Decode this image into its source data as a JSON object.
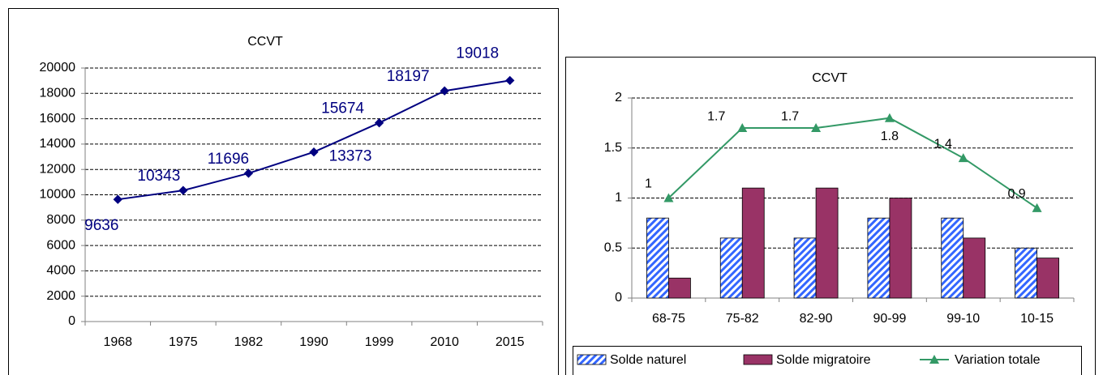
{
  "chart_data": [
    {
      "type": "line",
      "title": "CCVT",
      "categories": [
        "1968",
        "1975",
        "1982",
        "1990",
        "1999",
        "2010",
        "2015"
      ],
      "values": [
        9636,
        10343,
        11696,
        13373,
        15674,
        18197,
        19018
      ],
      "color": "#000080",
      "ylim": [
        0,
        20000
      ],
      "yticks": [
        0,
        2000,
        4000,
        6000,
        8000,
        10000,
        12000,
        14000,
        16000,
        18000,
        20000
      ],
      "grid": true
    },
    {
      "type": "bar",
      "title": "CCVT",
      "categories": [
        "68-75",
        "75-82",
        "82-90",
        "90-99",
        "99-10",
        "10-15"
      ],
      "series": [
        {
          "name": "Solde naturel",
          "type": "bar",
          "color": "#3366ff",
          "values": [
            0.8,
            0.6,
            0.6,
            0.8,
            0.8,
            0.5
          ]
        },
        {
          "name": "Solde migratoire",
          "type": "bar",
          "color": "#993366",
          "values": [
            0.2,
            1.1,
            1.1,
            1,
            0.6,
            0.4
          ]
        },
        {
          "name": "Variation totale",
          "type": "line",
          "color": "#339966",
          "values": [
            1,
            1.7,
            1.7,
            1.8,
            1.4,
            0.9
          ]
        }
      ],
      "ylim": [
        0,
        2
      ],
      "yticks": [
        0,
        0.5,
        1,
        1.5,
        2
      ],
      "grid": true,
      "legend": "bottom"
    }
  ]
}
